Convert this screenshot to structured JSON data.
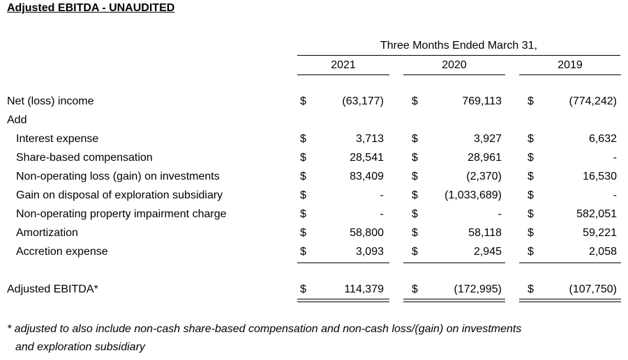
{
  "title": "Adjusted EBITDA - UNAUDITED",
  "period_header": "Three Months Ended March 31,",
  "years": [
    "2021",
    "2020",
    "2019"
  ],
  "currency_symbol": "$",
  "rows": [
    {
      "label": "Net (loss) income",
      "values": [
        "(63,177)",
        "769,113",
        "(774,242)"
      ]
    },
    {
      "label": "Add"
    },
    {
      "label": "Interest expense",
      "values": [
        "3,713",
        "3,927",
        "6,632"
      ]
    },
    {
      "label": "Share-based compensation",
      "values": [
        "28,541",
        "28,961",
        "-"
      ]
    },
    {
      "label": "Non-operating loss (gain) on investments",
      "values": [
        "83,409",
        "(2,370)",
        "16,530"
      ]
    },
    {
      "label": "Gain on disposal of exploration subsidiary",
      "values": [
        "-",
        "(1,033,689)",
        "-"
      ]
    },
    {
      "label": "Non-operating property impairment charge",
      "values": [
        "-",
        "-",
        "582,051"
      ]
    },
    {
      "label": "Amortization",
      "values": [
        "58,800",
        "58,118",
        "59,221"
      ]
    },
    {
      "label": "Accretion expense",
      "values": [
        "3,093",
        "2,945",
        "2,058"
      ]
    }
  ],
  "total": {
    "label": "Adjusted EBITDA*",
    "values": [
      "114,379",
      "(172,995)",
      "(107,750)"
    ]
  },
  "footnote": {
    "line1": "* adjusted to also include non-cash share-based compensation and non-cash loss/(gain) on investments",
    "line2": "and exploration subsidiary"
  }
}
